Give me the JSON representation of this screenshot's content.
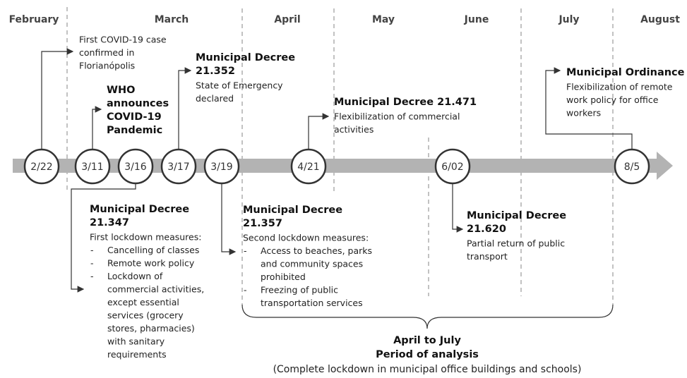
{
  "months": [
    "February",
    "March",
    "April",
    "May",
    "June",
    "July",
    "August"
  ],
  "dates": [
    "2/22",
    "3/11",
    "3/16",
    "3/17",
    "3/19",
    "4/21",
    "6/02",
    "8/5"
  ],
  "events": [
    {
      "body": [
        "First COVID-19 case",
        "confirmed in",
        "Florianópolis"
      ]
    },
    {
      "title": [
        "WHO",
        "announces",
        "COVID-19",
        "Pandemic"
      ]
    },
    {
      "title": [
        "Municipal Decree",
        "21.352"
      ],
      "body": [
        "State of Emergency",
        "declared"
      ]
    },
    {
      "title": [
        "Municipal Decree 21.471"
      ],
      "body": [
        "Flexibilization of commercial",
        "activities"
      ]
    },
    {
      "title": [
        "Municipal Ordinance"
      ],
      "body": [
        "Flexibilization of remote",
        "work policy for office",
        "workers"
      ]
    },
    {
      "title": [
        "Municipal Decree",
        "21.347"
      ],
      "body": [
        "First lockdown measures:"
      ],
      "bullets": [
        [
          "Cancelling of classes"
        ],
        [
          "Remote work policy"
        ],
        [
          "Lockdown of",
          "commercial activities,",
          "except essential",
          "services (grocery",
          "stores, pharmacies)",
          "with sanitary",
          "requirements"
        ]
      ]
    },
    {
      "title": [
        "Municipal Decree",
        "21.357"
      ],
      "body": [
        "Second lockdown measures:"
      ],
      "bullets": [
        [
          "Access to beaches, parks",
          "and community spaces",
          "prohibited"
        ],
        [
          "Freezing of public",
          "transportation services"
        ]
      ]
    },
    {
      "title": [
        "Municipal Decree",
        "21.620"
      ],
      "body": [
        "Partial return of public",
        "transport"
      ]
    }
  ],
  "period": {
    "title": [
      "April to July",
      "Period of analysis"
    ],
    "note": "(Complete lockdown in municipal office buildings and schools)"
  }
}
